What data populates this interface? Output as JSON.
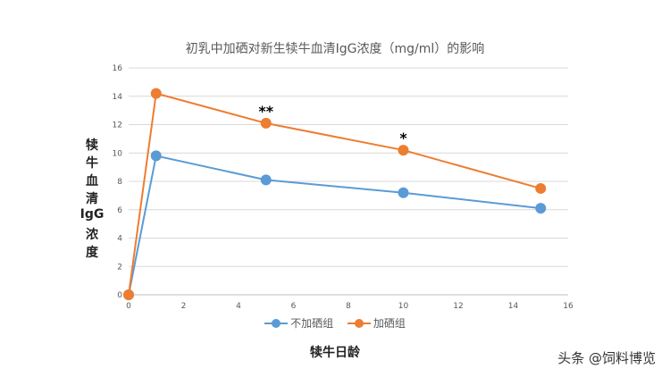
{
  "chart_data": {
    "type": "line",
    "title": "初乳中加硒对新生犊牛血清IgG浓度（mg/ml）的影响",
    "xlabel": "犊牛日龄",
    "ylabel_chars": [
      "犊",
      "牛",
      "血",
      "清",
      "IgG",
      "浓",
      "度"
    ],
    "xlim": [
      0,
      16
    ],
    "ylim": [
      0,
      16
    ],
    "xticks": [
      0,
      2,
      4,
      6,
      8,
      10,
      12,
      14,
      16
    ],
    "yticks": [
      0,
      2,
      4,
      6,
      8,
      10,
      12,
      14,
      16
    ],
    "grid": "horizontal",
    "legend_position": "bottom",
    "series": [
      {
        "name": "不加硒组",
        "color": "#5b9bd5",
        "x": [
          0,
          1,
          5,
          10,
          15
        ],
        "y": [
          0,
          9.8,
          8.1,
          7.2,
          6.1
        ]
      },
      {
        "name": "加硒组",
        "color": "#ed7d31",
        "x": [
          0,
          1,
          5,
          10,
          15
        ],
        "y": [
          0,
          14.2,
          12.1,
          10.2,
          7.5
        ]
      }
    ],
    "annotations": [
      {
        "x": 5,
        "y": 12.1,
        "text": "**"
      },
      {
        "x": 10,
        "y": 10.2,
        "text": "*"
      }
    ]
  },
  "watermark": "头条 @饲料博览"
}
